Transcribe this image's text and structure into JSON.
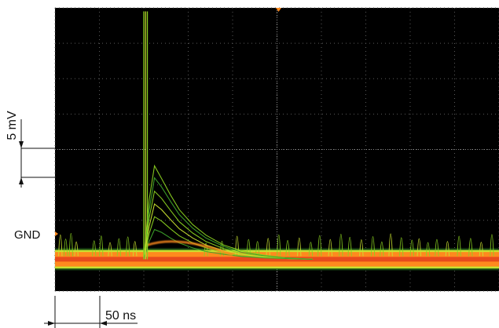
{
  "chart_data": {
    "type": "line",
    "title": "",
    "xlabel": "",
    "ylabel": "",
    "x_scale_label": "50 ns",
    "y_scale_label": "5 mV",
    "ground_label": "GND",
    "x_unit": "ns",
    "y_unit": "mV",
    "x_per_division": 50,
    "y_per_division": 5,
    "divisions": {
      "x": 10,
      "y": 8
    },
    "xlim": [
      0,
      500
    ],
    "ylim": [
      -4.5,
      35.5
    ],
    "grid": true,
    "background": "#000000",
    "trigger_x": 200,
    "persistence_colors": [
      "#e84a1c",
      "#ff8a1e",
      "#f0c82a",
      "#c8e030",
      "#8ad020",
      "#3da22a"
    ],
    "baseline": {
      "level": 0,
      "noise_band": [
        -1.3,
        1.3
      ]
    },
    "pulse": {
      "x": 102,
      "peak": 35,
      "width": 4
    },
    "series": [
      {
        "x": [
          100,
          106,
          112,
          120,
          130,
          140,
          155,
          170,
          190,
          210,
          235,
          260,
          290
        ],
        "values": [
          0,
          8.4,
          13.2,
          11.4,
          9.1,
          7.0,
          4.9,
          3.4,
          2.0,
          1.2,
          0.6,
          0.2,
          0
        ]
      },
      {
        "x": [
          100,
          106,
          112,
          120,
          130,
          140,
          155,
          170,
          190,
          210,
          235,
          260,
          290
        ],
        "values": [
          0,
          6.9,
          11.5,
          10.2,
          8.2,
          6.3,
          4.4,
          3.0,
          1.8,
          1.0,
          0.5,
          0.2,
          0
        ]
      },
      {
        "x": [
          100,
          106,
          112,
          120,
          130,
          140,
          155,
          170,
          190,
          210,
          235,
          260,
          290
        ],
        "values": [
          0,
          5.8,
          9.6,
          8.6,
          6.9,
          5.3,
          3.7,
          2.5,
          1.5,
          0.8,
          0.4,
          0.1,
          0
        ]
      },
      {
        "x": [
          100,
          106,
          112,
          120,
          130,
          140,
          155,
          170,
          190,
          210,
          235,
          260,
          290
        ],
        "values": [
          0,
          4.6,
          7.8,
          7.0,
          5.6,
          4.3,
          3.0,
          2.0,
          1.2,
          0.7,
          0.3,
          0.1,
          0
        ]
      },
      {
        "x": [
          100,
          106,
          112,
          120,
          130,
          140,
          155,
          170,
          190,
          210,
          235,
          260,
          290
        ],
        "values": [
          0,
          3.6,
          6.0,
          5.4,
          4.3,
          3.3,
          2.3,
          1.6,
          0.9,
          0.5,
          0.2,
          0.1,
          0
        ]
      },
      {
        "x": [
          100,
          106,
          112,
          120,
          130,
          140,
          155,
          170,
          190,
          210,
          235,
          260,
          290
        ],
        "values": [
          0,
          2.5,
          4.2,
          3.8,
          3.0,
          2.3,
          1.6,
          1.1,
          0.7,
          0.4,
          0.2,
          0.1,
          0
        ]
      }
    ],
    "noise_spikes": {
      "x": [
        6,
        12,
        18,
        24,
        44,
        52,
        62,
        72,
        82,
        90,
        170,
        188,
        205,
        218,
        228,
        240,
        252,
        262,
        275,
        288,
        298,
        310,
        322,
        332,
        345,
        358,
        368,
        378,
        390,
        402,
        410,
        420,
        430,
        442,
        455,
        468,
        480,
        492
      ],
      "values": [
        5.8,
        4.6,
        6.2,
        3.8,
        4.1,
        5.5,
        3.6,
        4.7,
        5.2,
        3.9,
        3.4,
        4.0,
        5.4,
        4.5,
        3.9,
        4.8,
        5.8,
        4.2,
        4.9,
        3.7,
        5.6,
        4.5,
        6.0,
        5.1,
        4.4,
        5.3,
        3.8,
        6.1,
        5.0,
        4.3,
        4.7,
        3.6,
        4.5,
        3.9,
        5.4,
        4.8,
        3.7,
        5.9
      ]
    }
  }
}
